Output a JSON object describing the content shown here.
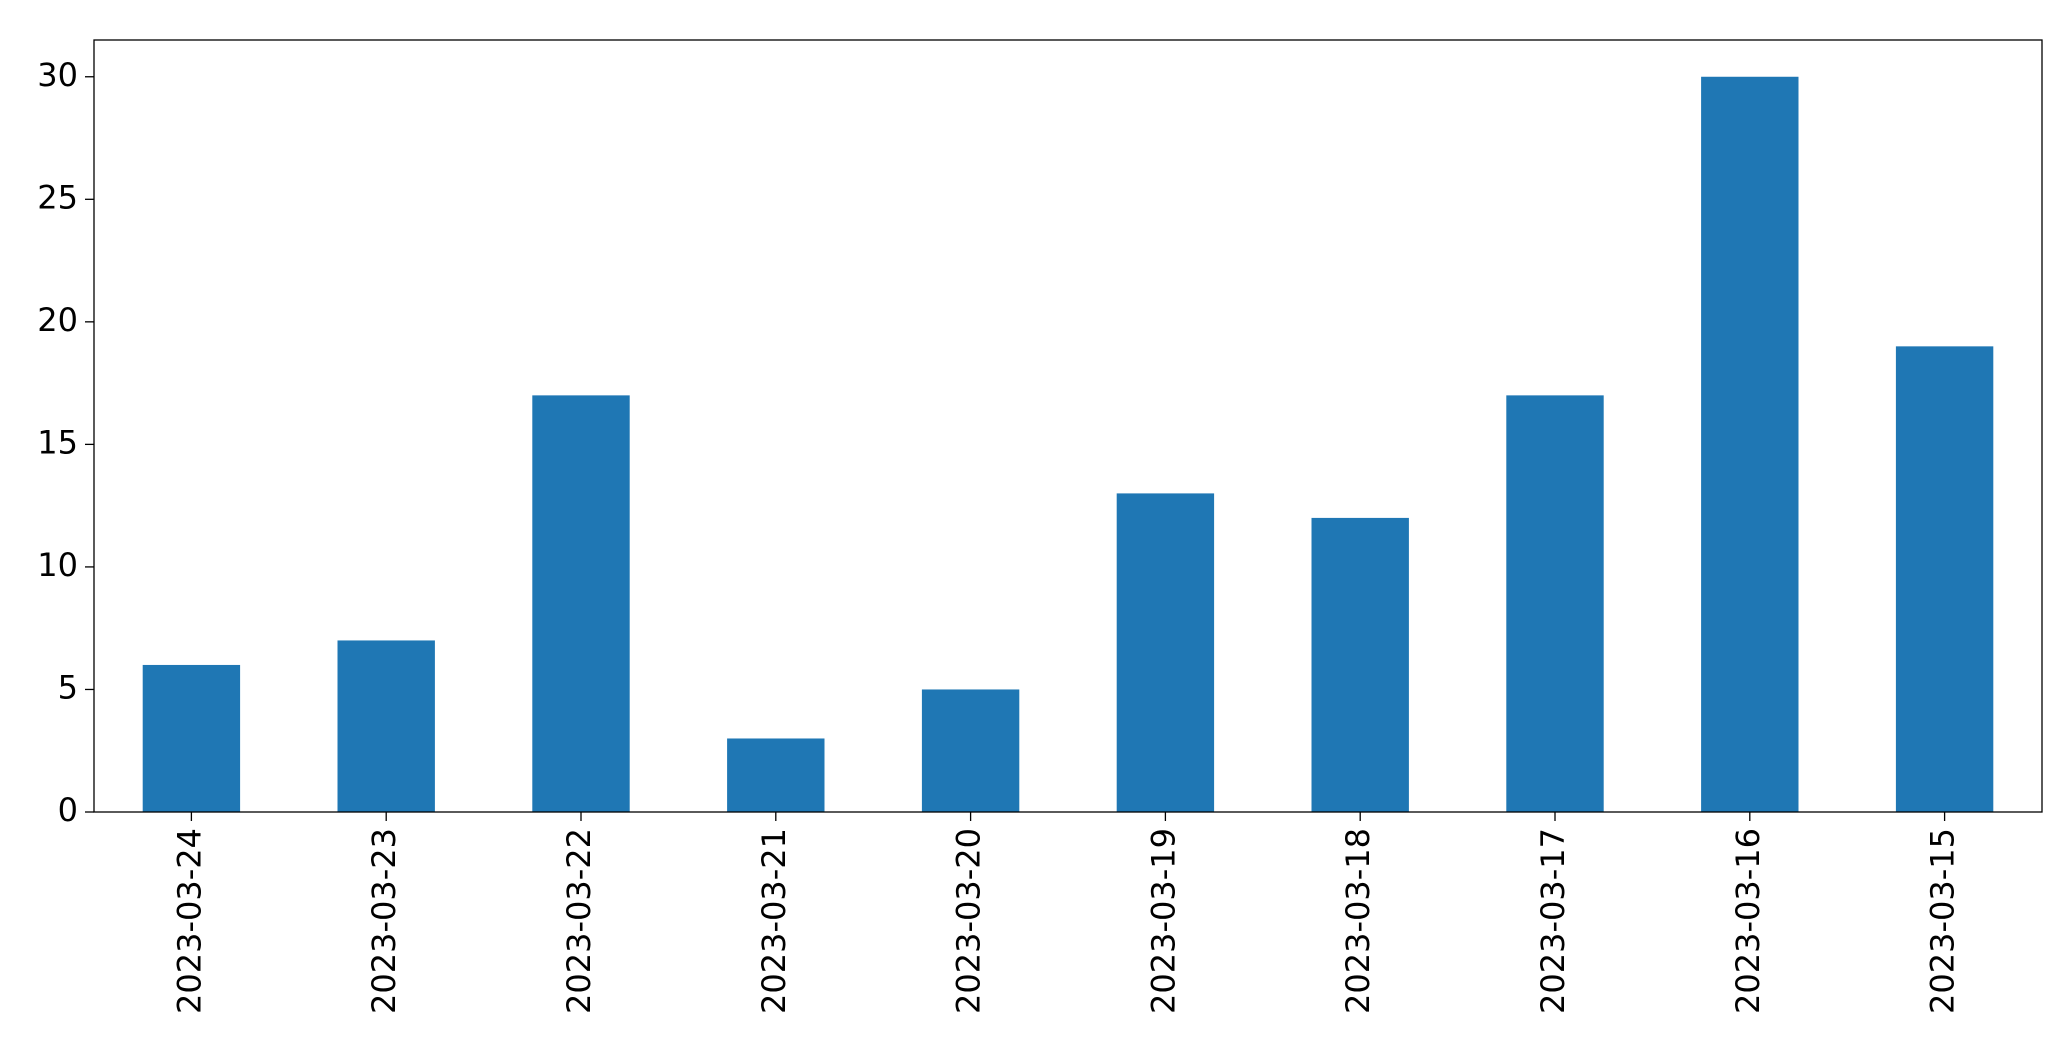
{
  "chart_data": {
    "type": "bar",
    "categories": [
      "2023-03-24",
      "2023-03-23",
      "2023-03-22",
      "2023-03-21",
      "2023-03-20",
      "2023-03-19",
      "2023-03-18",
      "2023-03-17",
      "2023-03-16",
      "2023-03-15"
    ],
    "values": [
      6,
      7,
      17,
      3,
      5,
      13,
      12,
      17,
      30,
      19
    ],
    "color": "#1f77b4",
    "ylim": [
      0,
      31.5
    ],
    "yticks": [
      0,
      5,
      10,
      15,
      20,
      25,
      30
    ],
    "grid": false
  }
}
